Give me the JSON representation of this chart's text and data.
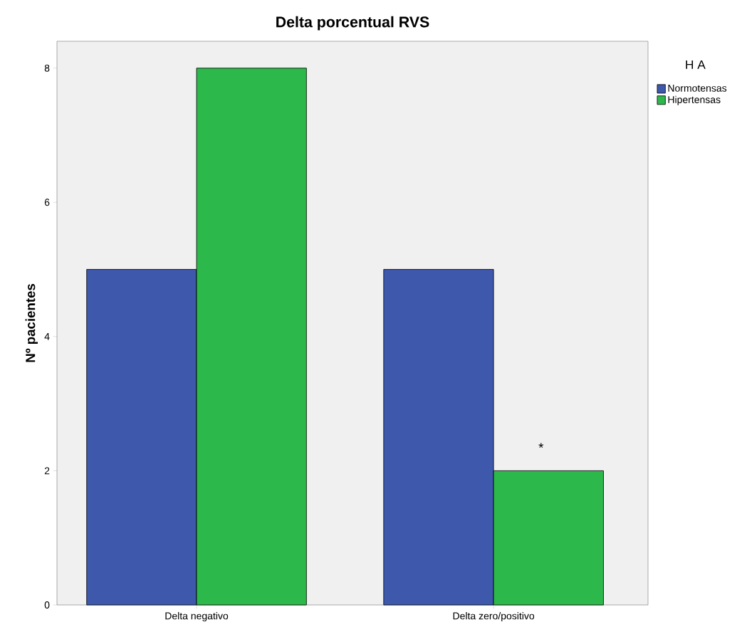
{
  "chart_data": {
    "type": "bar",
    "title": "Delta porcentual RVS",
    "ylabel": "Nº pacientes",
    "legend_title": "H A",
    "categories": [
      "Delta negativo",
      "Delta zero/positivo"
    ],
    "series": [
      {
        "name": "Normotensas",
        "color": "#3e58ac",
        "values": [
          5,
          5
        ]
      },
      {
        "name": "Hipertensas",
        "color": "#2db84b",
        "values": [
          8,
          2
        ]
      }
    ],
    "ylim": [
      0,
      8.4
    ],
    "yticks": [
      0,
      2,
      4,
      6,
      8
    ],
    "grid": false,
    "legend": "top right",
    "annotations": [
      "*"
    ]
  }
}
